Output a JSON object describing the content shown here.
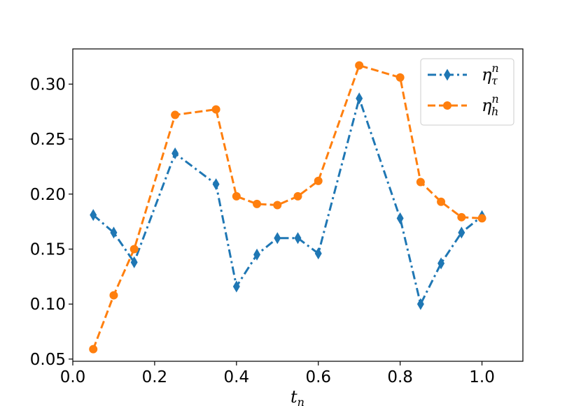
{
  "chart_data": {
    "type": "line",
    "title": "",
    "xlabel": "t_n",
    "ylabel": "",
    "xlim": [
      0.0,
      1.1
    ],
    "ylim": [
      0.048,
      0.332
    ],
    "grid": false,
    "legend_position": "top-right",
    "xticks": [
      0.0,
      0.2,
      0.4,
      0.6,
      0.8,
      1.0
    ],
    "xtick_labels": [
      "0.0",
      "0.2",
      "0.4",
      "0.6",
      "0.8",
      "1.0"
    ],
    "yticks": [
      0.05,
      0.1,
      0.15,
      0.2,
      0.25,
      0.3
    ],
    "ytick_labels": [
      "0.05",
      "0.10",
      "0.15",
      "0.20",
      "0.25",
      "0.30"
    ],
    "x": [
      0.05,
      0.1,
      0.15,
      0.25,
      0.35,
      0.4,
      0.45,
      0.5,
      0.55,
      0.6,
      0.7,
      0.8,
      0.85,
      0.9,
      0.95,
      1.0
    ],
    "series": [
      {
        "name": "η_τ^n",
        "legend_main": "η",
        "legend_sub": "τ",
        "legend_sup": "n",
        "color": "#1f77b4",
        "linestyle": "dashdot",
        "marker": "diamond",
        "values": [
          0.181,
          0.165,
          0.138,
          0.237,
          0.209,
          0.116,
          0.145,
          0.16,
          0.16,
          0.146,
          0.287,
          0.178,
          0.1,
          0.137,
          0.165,
          0.18
        ]
      },
      {
        "name": "η_h^n",
        "legend_main": "η",
        "legend_sub": "h",
        "legend_sup": "n",
        "color": "#ff7f0e",
        "linestyle": "dashed",
        "marker": "circle",
        "values": [
          0.059,
          0.108,
          0.15,
          0.272,
          0.277,
          0.198,
          0.191,
          0.19,
          0.198,
          0.212,
          0.317,
          0.306,
          0.211,
          0.193,
          0.179,
          0.178
        ]
      }
    ]
  }
}
